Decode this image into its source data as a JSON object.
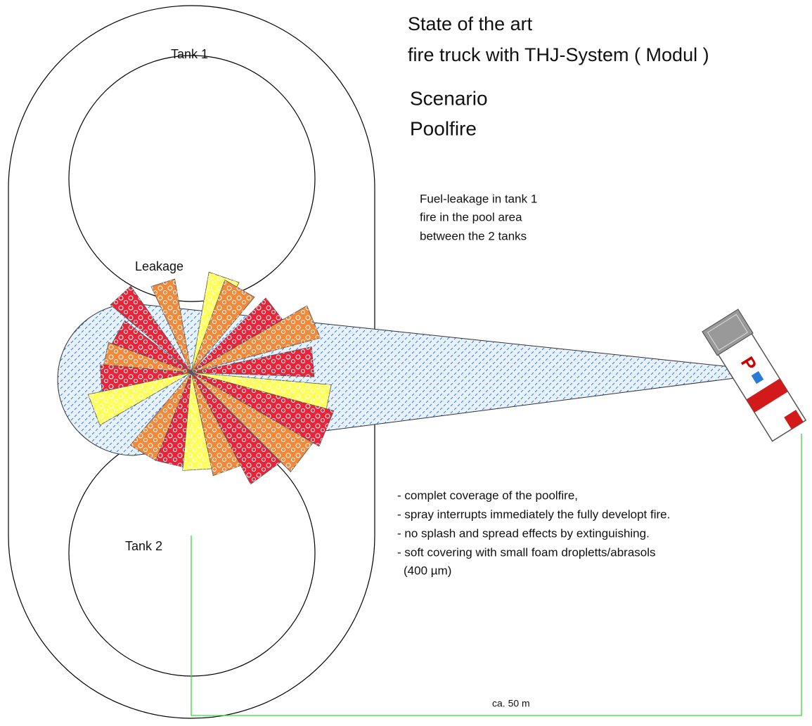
{
  "title": [
    "State of the art",
    "fire truck with THJ-System ( Modul )"
  ],
  "scenario": [
    "Scenario",
    "Poolfire"
  ],
  "tanks": [
    "Tank 1",
    "Tank 2"
  ],
  "leakage": "Leakage",
  "description": [
    "Fuel-leakage in tank 1",
    "fire in the pool area",
    "between the 2 tanks"
  ],
  "bullets": [
    "- complet coverage of the poolfire,",
    "- spray interrupts immediately the fully developt fire.",
    "- no splash and spread effects by extinguishing.",
    "- soft covering with small foam dropletts/abrasols",
    "(400 µm)"
  ],
  "distance": "ca. 50 m"
}
